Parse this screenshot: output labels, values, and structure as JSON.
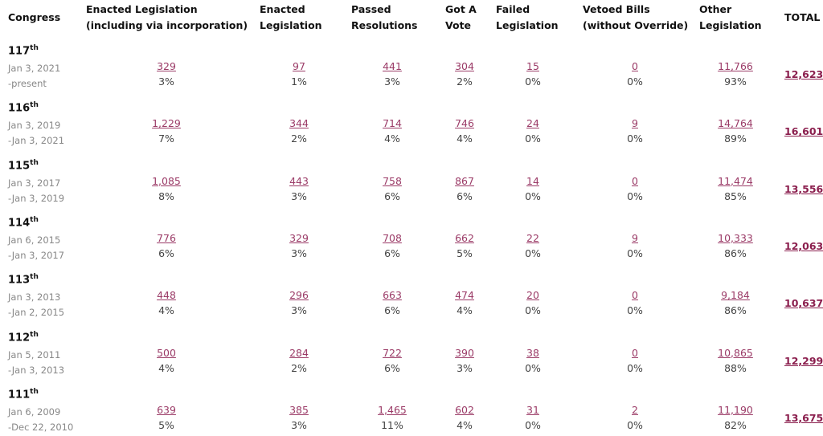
{
  "header": {
    "columns": [
      "Congress",
      "Enacted Legislation (including via incorporation)",
      "Enacted Legislation",
      "Passed Resolutions",
      "Got A Vote",
      "Failed Legislation",
      "Vetoed Bills (without Override)",
      "Other Legislation",
      "TOTAL"
    ]
  },
  "rows": [
    {
      "congress": "117",
      "suffix": "th",
      "start": "Jan 3, 2021",
      "end": "-present",
      "cells": [
        {
          "count": "329",
          "percent": "3%"
        },
        {
          "count": "97",
          "percent": "1%"
        },
        {
          "count": "441",
          "percent": "3%"
        },
        {
          "count": "304",
          "percent": "2%"
        },
        {
          "count": "15",
          "percent": "0%"
        },
        {
          "count": "0",
          "percent": "0%"
        },
        {
          "count": "11,766",
          "percent": "93%"
        }
      ],
      "total": "12,623"
    },
    {
      "congress": "116",
      "suffix": "th",
      "start": "Jan 3, 2019",
      "end": "-Jan 3, 2021",
      "cells": [
        {
          "count": "1,229",
          "percent": "7%"
        },
        {
          "count": "344",
          "percent": "2%"
        },
        {
          "count": "714",
          "percent": "4%"
        },
        {
          "count": "746",
          "percent": "4%"
        },
        {
          "count": "24",
          "percent": "0%"
        },
        {
          "count": "9",
          "percent": "0%"
        },
        {
          "count": "14,764",
          "percent": "89%"
        }
      ],
      "total": "16,601"
    },
    {
      "congress": "115",
      "suffix": "th",
      "start": "Jan 3, 2017",
      "end": "-Jan 3, 2019",
      "cells": [
        {
          "count": "1,085",
          "percent": "8%"
        },
        {
          "count": "443",
          "percent": "3%"
        },
        {
          "count": "758",
          "percent": "6%"
        },
        {
          "count": "867",
          "percent": "6%"
        },
        {
          "count": "14",
          "percent": "0%"
        },
        {
          "count": "0",
          "percent": "0%"
        },
        {
          "count": "11,474",
          "percent": "85%"
        }
      ],
      "total": "13,556"
    },
    {
      "congress": "114",
      "suffix": "th",
      "start": "Jan 6, 2015",
      "end": "-Jan 3, 2017",
      "cells": [
        {
          "count": "776",
          "percent": "6%"
        },
        {
          "count": "329",
          "percent": "3%"
        },
        {
          "count": "708",
          "percent": "6%"
        },
        {
          "count": "662",
          "percent": "5%"
        },
        {
          "count": "22",
          "percent": "0%"
        },
        {
          "count": "9",
          "percent": "0%"
        },
        {
          "count": "10,333",
          "percent": "86%"
        }
      ],
      "total": "12,063"
    },
    {
      "congress": "113",
      "suffix": "th",
      "start": "Jan 3, 2013",
      "end": "-Jan 2, 2015",
      "cells": [
        {
          "count": "448",
          "percent": "4%"
        },
        {
          "count": "296",
          "percent": "3%"
        },
        {
          "count": "663",
          "percent": "6%"
        },
        {
          "count": "474",
          "percent": "4%"
        },
        {
          "count": "20",
          "percent": "0%"
        },
        {
          "count": "0",
          "percent": "0%"
        },
        {
          "count": "9,184",
          "percent": "86%"
        }
      ],
      "total": "10,637"
    },
    {
      "congress": "112",
      "suffix": "th",
      "start": "Jan 5, 2011",
      "end": "-Jan 3, 2013",
      "cells": [
        {
          "count": "500",
          "percent": "4%"
        },
        {
          "count": "284",
          "percent": "2%"
        },
        {
          "count": "722",
          "percent": "6%"
        },
        {
          "count": "390",
          "percent": "3%"
        },
        {
          "count": "38",
          "percent": "0%"
        },
        {
          "count": "0",
          "percent": "0%"
        },
        {
          "count": "10,865",
          "percent": "88%"
        }
      ],
      "total": "12,299"
    },
    {
      "congress": "111",
      "suffix": "th",
      "start": "Jan 6, 2009",
      "end": "-Dec 22, 2010",
      "cells": [
        {
          "count": "639",
          "percent": "5%"
        },
        {
          "count": "385",
          "percent": "3%"
        },
        {
          "count": "1,465",
          "percent": "11%"
        },
        {
          "count": "602",
          "percent": "4%"
        },
        {
          "count": "31",
          "percent": "0%"
        },
        {
          "count": "2",
          "percent": "0%"
        },
        {
          "count": "11,190",
          "percent": "82%"
        }
      ],
      "total": "13,675"
    }
  ]
}
